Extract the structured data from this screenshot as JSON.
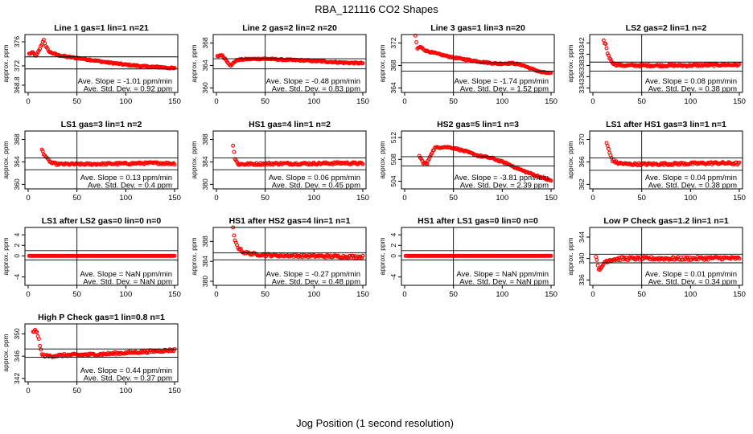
{
  "figure": {
    "title": "RBA_121116  CO2 Shapes",
    "xlabel": "Jog Position (1 second resolution)",
    "ylabel": "approx. ppm",
    "slope_prefix": "Ave. Slope = ",
    "slope_unit": " ppm/min",
    "sd_prefix": "Ave. Std. Dev. = ",
    "sd_unit": " ppm",
    "marker_color": "#ff0000",
    "line_color": "#000000"
  },
  "chart_data": [
    {
      "type": "scatter",
      "title": "Line 1 gas=1 lin=1 n=21",
      "xlim": [
        0,
        150
      ],
      "xticks": [
        0,
        50,
        100,
        150
      ],
      "ylim": [
        367.6,
        377.2
      ],
      "yticks": [
        "368.8",
        "372",
        "376"
      ],
      "ytick_values": [
        368.8,
        372,
        376
      ],
      "vline": 50,
      "hlines": [
        371.5,
        373.5
      ],
      "slope": "-1.01",
      "sd": "0.92",
      "series": {
        "kind": "curve",
        "x_start": 1,
        "x_end": 150,
        "points": [
          [
            1,
            374
          ],
          [
            5,
            374.2
          ],
          [
            8,
            373.6
          ],
          [
            11,
            374.5
          ],
          [
            14,
            375.6
          ],
          [
            16,
            376.4
          ],
          [
            18,
            375.2
          ],
          [
            22,
            374.3
          ],
          [
            30,
            373.8
          ],
          [
            40,
            373.5
          ],
          [
            50,
            373.3
          ],
          [
            60,
            373.1
          ],
          [
            80,
            372.6
          ],
          [
            100,
            372.2
          ],
          [
            120,
            371.9
          ],
          [
            135,
            371.8
          ],
          [
            150,
            371.6
          ]
        ],
        "noise": 0.12
      }
    },
    {
      "type": "scatter",
      "title": "Line 2 gas=2 lin=2 n=20",
      "xlim": [
        0,
        150
      ],
      "xticks": [
        0,
        50,
        100,
        150
      ],
      "ylim": [
        359.2,
        369.5
      ],
      "yticks": [
        "360",
        "364",
        "368"
      ],
      "ytick_values": [
        360,
        364,
        368
      ],
      "vline": 50,
      "hlines": [
        365.2,
        363.4
      ],
      "slope": "-0.48",
      "sd": "0.83",
      "series": {
        "kind": "curve",
        "x_start": 1,
        "x_end": 150,
        "points": [
          [
            1,
            365.6
          ],
          [
            5,
            365.9
          ],
          [
            9,
            365.2
          ],
          [
            12,
            364.5
          ],
          [
            15,
            363.9
          ],
          [
            18,
            364.6
          ],
          [
            22,
            365.0
          ],
          [
            30,
            365.1
          ],
          [
            50,
            365.2
          ],
          [
            70,
            365.0
          ],
          [
            90,
            364.9
          ],
          [
            110,
            364.7
          ],
          [
            130,
            364.5
          ],
          [
            150,
            364.4
          ]
        ],
        "noise": 0.12
      }
    },
    {
      "type": "scatter",
      "title": "Line 3 gas=1 lin=3 n=20",
      "xlim": [
        0,
        150
      ],
      "xticks": [
        0,
        50,
        100,
        150
      ],
      "ylim": [
        363.2,
        373.5
      ],
      "yticks": [
        "364",
        "368",
        "372"
      ],
      "ytick_values": [
        364,
        368,
        372
      ],
      "vline": 50,
      "hlines": [
        368.5,
        367.0
      ],
      "slope": "-1.74",
      "sd": "1.52",
      "series": {
        "kind": "curve",
        "x_start": 11,
        "x_end": 150,
        "points": [
          [
            11,
            373.2
          ],
          [
            13,
            371.0
          ],
          [
            16,
            371.3
          ],
          [
            22,
            370.6
          ],
          [
            35,
            370.0
          ],
          [
            50,
            369.4
          ],
          [
            65,
            369.0
          ],
          [
            80,
            368.6
          ],
          [
            95,
            368.3
          ],
          [
            110,
            368.4
          ],
          [
            120,
            368.1
          ],
          [
            130,
            367.4
          ],
          [
            140,
            366.8
          ],
          [
            150,
            366.6
          ]
        ],
        "noise": 0.12
      }
    },
    {
      "type": "scatter",
      "title": "LS2 gas=2 lin=1 n=2",
      "xlim": [
        0,
        150
      ],
      "xticks": [
        0,
        50,
        100,
        150
      ],
      "ylim": [
        333.2,
        343.5
      ],
      "yticks": [
        "334",
        "336",
        "338",
        "340",
        "342"
      ],
      "ytick_values": [
        334,
        336,
        338,
        340,
        342
      ],
      "vline": 50,
      "hlines": [
        338.6,
        337.0
      ],
      "slope": "0.08",
      "sd": "0.38",
      "series": {
        "kind": "curve",
        "x_start": 11,
        "x_end": 150,
        "points": [
          [
            11,
            342.3
          ],
          [
            13,
            341.8
          ],
          [
            15,
            340.2
          ],
          [
            18,
            339.0
          ],
          [
            22,
            338.2
          ],
          [
            30,
            338.0
          ],
          [
            60,
            338.0
          ],
          [
            100,
            338.0
          ],
          [
            130,
            338.1
          ],
          [
            150,
            338.1
          ]
        ],
        "noise": 0.18
      }
    },
    {
      "type": "scatter",
      "title": "LS1 gas=3 lin=1 n=2",
      "xlim": [
        0,
        150
      ],
      "xticks": [
        0,
        50,
        100,
        150
      ],
      "ylim": [
        359.2,
        369.5
      ],
      "yticks": [
        "360",
        "364",
        "368"
      ],
      "ytick_values": [
        360,
        364,
        368
      ],
      "vline": 50,
      "hlines": [
        364.7,
        362.6
      ],
      "slope": "0.13",
      "sd": "0.4",
      "series": {
        "kind": "curve",
        "x_start": 14,
        "x_end": 150,
        "points": [
          [
            14,
            366.2
          ],
          [
            16,
            365.5
          ],
          [
            19,
            364.6
          ],
          [
            24,
            363.8
          ],
          [
            30,
            363.6
          ],
          [
            60,
            363.6
          ],
          [
            100,
            363.7
          ],
          [
            130,
            363.8
          ],
          [
            150,
            363.7
          ]
        ],
        "noise": 0.18
      }
    },
    {
      "type": "scatter",
      "title": "HS1 gas=4 lin=1 n=2",
      "xlim": [
        0,
        150
      ],
      "xticks": [
        0,
        50,
        100,
        150
      ],
      "ylim": [
        379.2,
        389.5
      ],
      "yticks": [
        "380",
        "384",
        "388"
      ],
      "ytick_values": [
        380,
        384,
        388
      ],
      "vline": 50,
      "hlines": [
        384.7,
        382.6
      ],
      "slope": "0.06",
      "sd": "0.45",
      "series": {
        "kind": "curve",
        "x_start": 17,
        "x_end": 150,
        "points": [
          [
            17,
            387.0
          ],
          [
            19,
            384.6
          ],
          [
            22,
            383.6
          ],
          [
            30,
            383.6
          ],
          [
            60,
            383.7
          ],
          [
            100,
            383.7
          ],
          [
            130,
            383.8
          ],
          [
            150,
            383.7
          ]
        ],
        "noise": 0.2
      }
    },
    {
      "type": "scatter",
      "title": "HS2 gas=5 lin=1 n=3",
      "xlim": [
        0,
        150
      ],
      "xticks": [
        0,
        50,
        100,
        150
      ],
      "ylim": [
        502.6,
        513.2
      ],
      "yticks": [
        "504",
        "508",
        "512"
      ],
      "ytick_values": [
        504,
        508,
        512
      ],
      "vline": 50,
      "hlines": [
        508.5,
        506.8
      ],
      "slope": "-3.81",
      "sd": "2.39",
      "series": {
        "kind": "curve",
        "x_start": 15,
        "x_end": 150,
        "points": [
          [
            15,
            508.6
          ],
          [
            19,
            507.4
          ],
          [
            23,
            507.2
          ],
          [
            27,
            509.0
          ],
          [
            31,
            510.1
          ],
          [
            40,
            510.3
          ],
          [
            50,
            510.1
          ],
          [
            60,
            509.6
          ],
          [
            75,
            508.7
          ],
          [
            90,
            508.2
          ],
          [
            105,
            507.2
          ],
          [
            120,
            506.0
          ],
          [
            135,
            505.0
          ],
          [
            150,
            504.1
          ]
        ],
        "noise": 0.15
      }
    },
    {
      "type": "scatter",
      "title": "LS1 after HS1 gas=3 lin=1 n=1",
      "xlim": [
        0,
        150
      ],
      "xticks": [
        0,
        50,
        100,
        150
      ],
      "ylim": [
        361.2,
        371.5
      ],
      "yticks": [
        "362",
        "366",
        "370"
      ],
      "ytick_values": [
        362,
        366,
        370
      ],
      "vline": 50,
      "hlines": [
        366.7,
        364.5
      ],
      "slope": "0.04",
      "sd": "0.38",
      "series": {
        "kind": "curve",
        "x_start": 14,
        "x_end": 150,
        "points": [
          [
            14,
            369.4
          ],
          [
            17,
            367.6
          ],
          [
            20,
            366.3
          ],
          [
            25,
            365.8
          ],
          [
            35,
            365.6
          ],
          [
            60,
            365.6
          ],
          [
            100,
            365.7
          ],
          [
            130,
            365.8
          ],
          [
            150,
            365.7
          ]
        ],
        "noise": 0.22
      }
    },
    {
      "type": "scatter",
      "title": "LS1 after LS2 gas=0 lin=0 n=0",
      "xlim": [
        0,
        150
      ],
      "xticks": [
        0,
        50,
        100,
        150
      ],
      "ylim": [
        -5.6,
        5.4
      ],
      "yticks": [
        "-4",
        "0",
        "2",
        "4"
      ],
      "ytick_values": [
        -4,
        0,
        2,
        4
      ],
      "vline": 50,
      "hlines": [
        1.0,
        -0.8
      ],
      "slope": "NaN",
      "sd": "NaN",
      "series": {
        "kind": "flat",
        "x_start": 1,
        "x_end": 150,
        "value": 0
      }
    },
    {
      "type": "scatter",
      "title": "HS1 after HS2 gas=4 lin=1 n=1",
      "xlim": [
        0,
        150
      ],
      "xticks": [
        0,
        50,
        100,
        150
      ],
      "ylim": [
        379.2,
        390.8
      ],
      "yticks": [
        "380",
        "384",
        "388"
      ],
      "ytick_values": [
        380,
        384,
        388
      ],
      "vline": 50,
      "hlines": [
        385.7,
        384.3
      ],
      "slope": "-0.27",
      "sd": "0.48",
      "series": {
        "kind": "curve",
        "x_start": 17,
        "x_end": 150,
        "points": [
          [
            17,
            390.6
          ],
          [
            19,
            388.0
          ],
          [
            22,
            386.8
          ],
          [
            28,
            385.8
          ],
          [
            40,
            385.4
          ],
          [
            60,
            385.2
          ],
          [
            90,
            385.1
          ],
          [
            120,
            385.0
          ],
          [
            150,
            384.9
          ]
        ],
        "noise": 0.25
      }
    },
    {
      "type": "scatter",
      "title": "HS1 after LS1 gas=0 lin=0 n=0",
      "xlim": [
        0,
        150
      ],
      "xticks": [
        0,
        50,
        100,
        150
      ],
      "ylim": [
        -5.6,
        5.4
      ],
      "yticks": [
        "-4",
        "0",
        "2",
        "4"
      ],
      "ytick_values": [
        -4,
        0,
        2,
        4
      ],
      "vline": 50,
      "hlines": [
        1.0,
        -0.8
      ],
      "slope": "NaN",
      "sd": "NaN",
      "series": {
        "kind": "flat",
        "x_start": 1,
        "x_end": 150,
        "value": 0
      }
    },
    {
      "type": "scatter",
      "title": "Low P Check gas=1.2 lin=1 n=1",
      "xlim": [
        0,
        150
      ],
      "xticks": [
        0,
        50,
        100,
        150
      ],
      "ylim": [
        335.0,
        345.8
      ],
      "yticks": [
        "336",
        "340",
        "344"
      ],
      "ytick_values": [
        336,
        340,
        344
      ],
      "vline": 50,
      "hlines": [
        340.8,
        339.2
      ],
      "slope": "0.01",
      "sd": "0.34",
      "series": {
        "kind": "curve",
        "x_start": 3,
        "x_end": 150,
        "points": [
          [
            3,
            340.6
          ],
          [
            5,
            338.9
          ],
          [
            7,
            337.6
          ],
          [
            9,
            338.3
          ],
          [
            12,
            339.4
          ],
          [
            18,
            339.8
          ],
          [
            30,
            340.0
          ],
          [
            60,
            340.0
          ],
          [
            100,
            340.0
          ],
          [
            130,
            340.1
          ],
          [
            150,
            340.0
          ]
        ],
        "noise": 0.3
      }
    },
    {
      "type": "scatter",
      "title": "High P Check gas=1 lin=0.8 n=1",
      "xlim": [
        0,
        150
      ],
      "xticks": [
        0,
        50,
        100,
        150
      ],
      "ylim": [
        341.4,
        351.8
      ],
      "yticks": [
        "342",
        "346",
        "350"
      ],
      "ytick_values": [
        342,
        346,
        350
      ],
      "vline": 50,
      "hlines": [
        347.3,
        345.8
      ],
      "slope": "0.44",
      "sd": "0.37",
      "series": {
        "kind": "curve",
        "x_start": 5,
        "x_end": 150,
        "points": [
          [
            5,
            350.5
          ],
          [
            8,
            350.6
          ],
          [
            11,
            349.0
          ],
          [
            14,
            346.2
          ],
          [
            20,
            346.0
          ],
          [
            40,
            346.2
          ],
          [
            70,
            346.3
          ],
          [
            100,
            346.6
          ],
          [
            130,
            346.9
          ],
          [
            150,
            347.1
          ]
        ],
        "noise": 0.22
      }
    }
  ]
}
